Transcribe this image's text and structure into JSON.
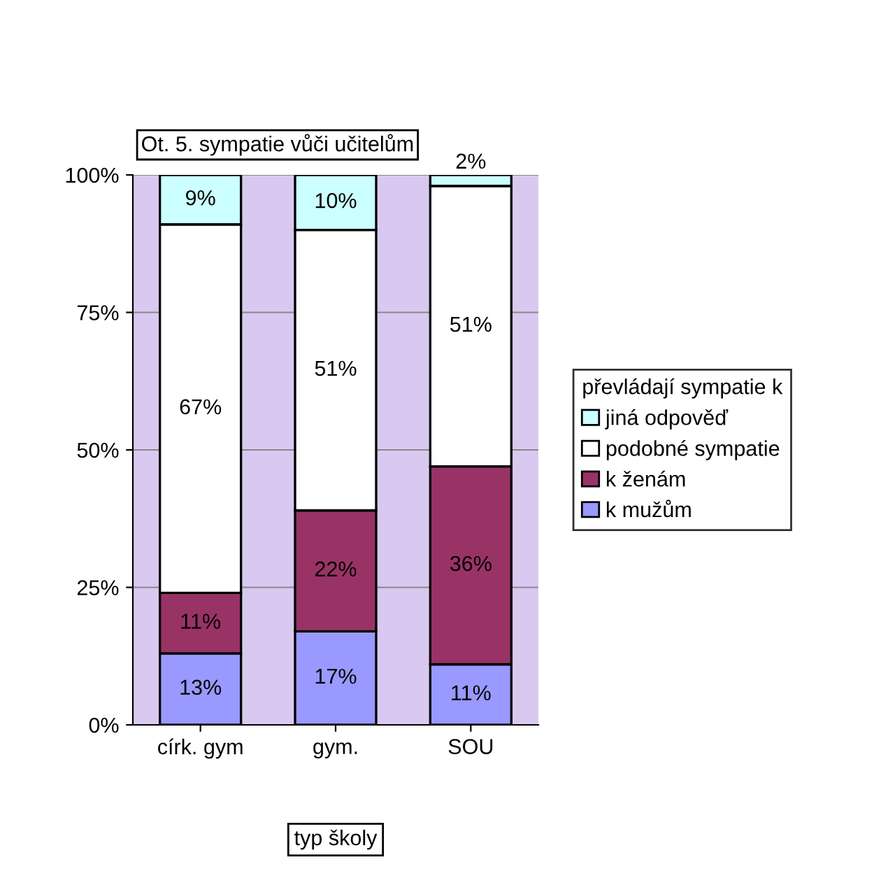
{
  "chart_data": {
    "type": "bar",
    "stacked": true,
    "title": "Ot. 5. sympatie vůči učitelům",
    "xlabel": "typ školy",
    "legend_title": "převládají sympatie k",
    "categories": [
      "círk. gym",
      "gym.",
      "SOU"
    ],
    "series": [
      {
        "name": "k mužům",
        "color": "#9999ff",
        "values": [
          13,
          17,
          11
        ],
        "value_labels": [
          "13%",
          "17%",
          "11%"
        ]
      },
      {
        "name": "k ženám",
        "color": "#993366",
        "values": [
          11,
          22,
          36
        ],
        "value_labels": [
          "11%",
          "22%",
          "36%"
        ]
      },
      {
        "name": "podobné sympatie",
        "color": "#ffffff",
        "values": [
          67,
          51,
          51
        ],
        "value_labels": [
          "67%",
          "51%",
          "51%"
        ]
      },
      {
        "name": "jiná odpověď",
        "color": "#ccffff",
        "values": [
          9,
          10,
          2
        ],
        "value_labels": [
          "9%",
          "10%",
          "2%"
        ]
      }
    ],
    "ylim": [
      0,
      100
    ],
    "yticks": [
      {
        "value": 0,
        "label": "0%"
      },
      {
        "value": 25,
        "label": "25%"
      },
      {
        "value": 50,
        "label": "50%"
      },
      {
        "value": 75,
        "label": "75%"
      },
      {
        "value": 100,
        "label": "100%"
      }
    ],
    "grid": "y",
    "legend": "right"
  }
}
